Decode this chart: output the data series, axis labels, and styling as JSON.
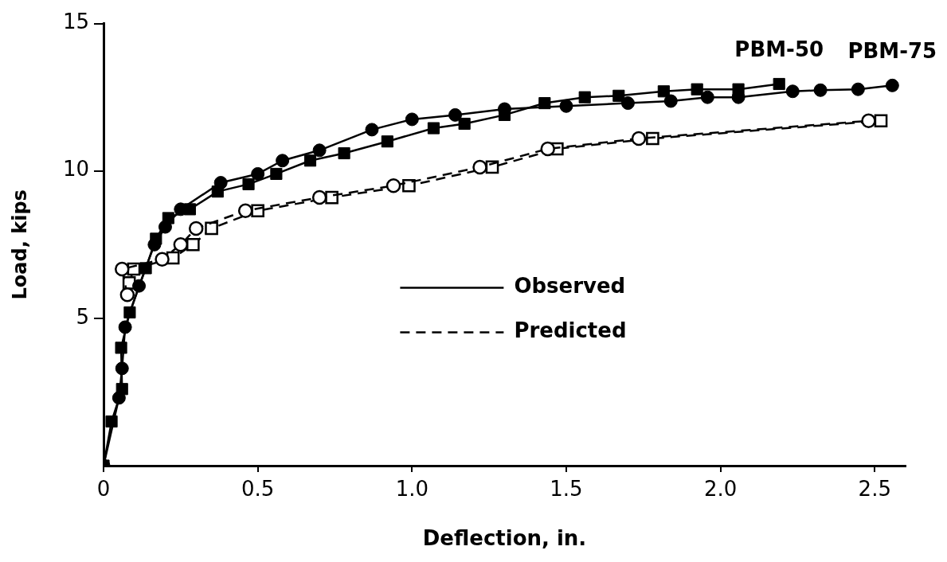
{
  "chart_data": {
    "type": "line",
    "xlabel": "Deflection, in.",
    "ylabel": "Load, kips",
    "xlim": [
      0,
      2.6
    ],
    "ylim": [
      0,
      15
    ],
    "xticks": [
      0,
      {
        "value": 0.5,
        "label": "0.5"
      },
      {
        "value": 1,
        "label": "1.0"
      },
      {
        "value": 1.5,
        "label": "1.5"
      },
      {
        "value": 2,
        "label": "2.0"
      },
      {
        "value": 2.5,
        "label": "2.5"
      }
    ],
    "yticks": [
      5,
      10,
      15
    ],
    "grid": false,
    "legend": "center",
    "annotations": [
      "PBM-75",
      "PBM-50"
    ],
    "series": [
      {
        "name": "Observed",
        "color": "#000000",
        "marker": "circle",
        "line_style": "solid",
        "x": [
          0,
          0.05,
          0.06,
          0.07,
          0.115,
          0.165,
          0.2,
          0.25,
          0.38,
          0.5,
          0.58,
          0.7,
          0.87,
          1.0,
          1.14,
          1.3,
          1.5,
          1.7,
          1.839,
          1.958,
          2.058,
          2.234,
          2.324,
          2.446,
          2.557
        ],
        "values": [
          0,
          2.3,
          3.3,
          4.7,
          6.1,
          7.5,
          8.1,
          8.7,
          9.6,
          9.9,
          10.35,
          10.7,
          11.4,
          11.75,
          11.9,
          12.1,
          12.2,
          12.3,
          12.37,
          12.5,
          12.5,
          12.7,
          12.74,
          12.77,
          12.9
        ]
      },
      {
        "color": "#000000",
        "marker": "square",
        "line_style": "solid",
        "x": [
          0,
          0.026,
          0.06,
          0.057,
          0.085,
          0.137,
          0.17,
          0.21,
          0.28,
          0.37,
          0.47,
          0.56,
          0.67,
          0.78,
          0.92,
          1.07,
          1.17,
          1.3,
          1.43,
          1.56,
          1.67,
          1.816,
          1.924,
          2.058,
          2.19
        ],
        "values": [
          0,
          1.5,
          2.6,
          4.0,
          5.2,
          6.7,
          7.7,
          8.4,
          8.7,
          9.3,
          9.55,
          9.9,
          10.35,
          10.6,
          11.0,
          11.45,
          11.6,
          11.9,
          12.3,
          12.5,
          12.55,
          12.7,
          12.77,
          12.77,
          12.95
        ]
      },
      {
        "name": "Predicted",
        "color": "#000000",
        "marker": "circle",
        "line_style": "dashed",
        "x": [
          0.077,
          0.06,
          0.19,
          0.25,
          0.3,
          0.46,
          0.7,
          0.94,
          1.22,
          1.44,
          1.735,
          2.48
        ],
        "values": [
          5.8,
          6.67,
          7.0,
          7.5,
          8.05,
          8.65,
          9.1,
          9.5,
          10.13,
          10.75,
          11.1,
          11.7
        ]
      },
      {
        "color": "#000000",
        "marker": "square",
        "line_style": "dashed",
        "x": [
          0.083,
          0.098,
          0.225,
          0.29,
          0.35,
          0.5,
          0.74,
          0.99,
          1.26,
          1.47,
          1.78,
          2.52
        ],
        "values": [
          6.2,
          6.67,
          7.05,
          7.5,
          8.05,
          8.65,
          9.1,
          9.5,
          10.13,
          10.75,
          11.1,
          11.7
        ]
      }
    ]
  }
}
